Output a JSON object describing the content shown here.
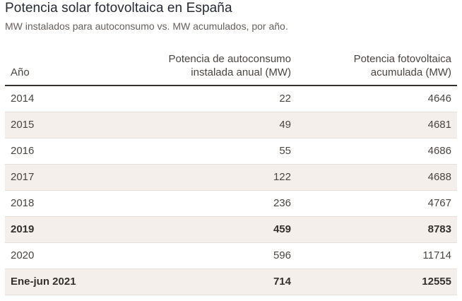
{
  "chart_data": {
    "type": "table",
    "title": "Potencia solar fotovoltaica en España",
    "subtitle": "MW instalados para autoconsumo vs. MW acumulados, por año.",
    "columns": [
      "Año",
      "Potencia de autoconsumo instalada anual (MW)",
      "Potencia fotovoltaica acumulada (MW)"
    ],
    "column_headers": {
      "year": "Año",
      "autoconsumo_line1": "Potencia de autoconsumo",
      "autoconsumo_line2": "instalada anual (MW)",
      "acumulada_line1": "Potencia fotovoltaica",
      "acumulada_line2": "acumulada (MW)"
    },
    "rows": [
      {
        "year": "2014",
        "autoconsumo": "22",
        "acumulada": "4646",
        "bold": false
      },
      {
        "year": "2015",
        "autoconsumo": "49",
        "acumulada": "4681",
        "bold": false
      },
      {
        "year": "2016",
        "autoconsumo": "55",
        "acumulada": "4686",
        "bold": false
      },
      {
        "year": "2017",
        "autoconsumo": "122",
        "acumulada": "4688",
        "bold": false
      },
      {
        "year": "2018",
        "autoconsumo": "236",
        "acumulada": "4767",
        "bold": false
      },
      {
        "year": "2019",
        "autoconsumo": "459",
        "acumulada": "8783",
        "bold": true
      },
      {
        "year": "2020",
        "autoconsumo": "596",
        "acumulada": "11714",
        "bold": false
      },
      {
        "year": "Ene-jun 2021",
        "autoconsumo": "714",
        "acumulada": "12555",
        "bold": true
      }
    ]
  }
}
